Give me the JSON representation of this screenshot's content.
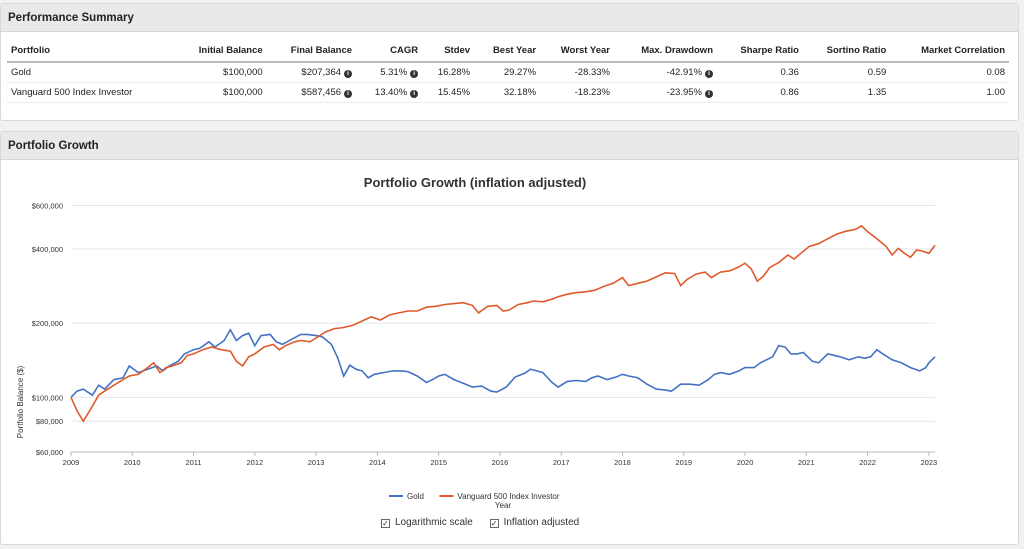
{
  "perf": {
    "title": "Performance Summary",
    "columns": [
      "Portfolio",
      "Initial Balance",
      "Final Balance",
      "CAGR",
      "Stdev",
      "Best Year",
      "Worst Year",
      "Max. Drawdown",
      "Sharpe Ratio",
      "Sortino Ratio",
      "Market Correlation"
    ],
    "rows": [
      [
        "Gold",
        "$100,000",
        "$207,364",
        "5.31%",
        "16.28%",
        "29.27%",
        "-28.33%",
        "-42.91%",
        "0.36",
        "0.59",
        "0.08"
      ],
      [
        "Vanguard 500 Index Investor",
        "$100,000",
        "$587,456",
        "13.40%",
        "15.45%",
        "32.18%",
        "-18.23%",
        "-23.95%",
        "0.86",
        "1.35",
        "1.00"
      ]
    ]
  },
  "growth": {
    "title": "Portfolio Growth",
    "options": {
      "log_label": "Logarithmic scale",
      "inflation_label": "Inflation adjusted"
    }
  },
  "colors": {
    "gold": "#4472c4",
    "vanguard": "#e05a2b"
  },
  "chart_data": {
    "type": "line",
    "title": "Portfolio Growth (inflation adjusted)",
    "xlabel": "Year",
    "ylabel": "Portfolio Balance ($)",
    "yscale": "log",
    "ylim": [
      60000,
      620000
    ],
    "xlim": [
      2009,
      2023.1
    ],
    "xticks": [
      "2009",
      "2010",
      "2011",
      "2012",
      "2013",
      "2014",
      "2015",
      "2016",
      "2017",
      "2018",
      "2019",
      "2020",
      "2021",
      "2022",
      "2023"
    ],
    "yticks": [
      {
        "v": 60000,
        "label": "$60,000"
      },
      {
        "v": 80000,
        "label": "$80,000"
      },
      {
        "v": 100000,
        "label": "$100,000"
      },
      {
        "v": 200000,
        "label": "$200,000"
      },
      {
        "v": 400000,
        "label": "$400,000"
      },
      {
        "v": 600000,
        "label": "$600,000"
      }
    ],
    "legend_position": "bottom",
    "series": [
      {
        "name": "Gold",
        "points": [
          [
            2009.0,
            100000
          ],
          [
            2009.1,
            106000
          ],
          [
            2009.2,
            108000
          ],
          [
            2009.35,
            102000
          ],
          [
            2009.45,
            112000
          ],
          [
            2009.55,
            108000
          ],
          [
            2009.7,
            118000
          ],
          [
            2009.85,
            120000
          ],
          [
            2009.95,
            134000
          ],
          [
            2010.1,
            126000
          ],
          [
            2010.25,
            130000
          ],
          [
            2010.4,
            134000
          ],
          [
            2010.5,
            128000
          ],
          [
            2010.6,
            134000
          ],
          [
            2010.75,
            140000
          ],
          [
            2010.85,
            150000
          ],
          [
            2011.0,
            156000
          ],
          [
            2011.1,
            158000
          ],
          [
            2011.25,
            168000
          ],
          [
            2011.35,
            160000
          ],
          [
            2011.5,
            170000
          ],
          [
            2011.6,
            188000
          ],
          [
            2011.7,
            170000
          ],
          [
            2011.8,
            178000
          ],
          [
            2011.9,
            182000
          ],
          [
            2012.0,
            162000
          ],
          [
            2012.1,
            178000
          ],
          [
            2012.25,
            180000
          ],
          [
            2012.35,
            168000
          ],
          [
            2012.45,
            164000
          ],
          [
            2012.6,
            172000
          ],
          [
            2012.75,
            180000
          ],
          [
            2012.85,
            180000
          ],
          [
            2013.0,
            178000
          ],
          [
            2013.1,
            176000
          ],
          [
            2013.25,
            164000
          ],
          [
            2013.35,
            145000
          ],
          [
            2013.45,
            122000
          ],
          [
            2013.55,
            135000
          ],
          [
            2013.65,
            130000
          ],
          [
            2013.75,
            128000
          ],
          [
            2013.85,
            120000
          ],
          [
            2013.95,
            124000
          ],
          [
            2014.1,
            126000
          ],
          [
            2014.25,
            128000
          ],
          [
            2014.4,
            128000
          ],
          [
            2014.5,
            127000
          ],
          [
            2014.65,
            122000
          ],
          [
            2014.8,
            115000
          ],
          [
            2014.9,
            118000
          ],
          [
            2015.0,
            122000
          ],
          [
            2015.1,
            124000
          ],
          [
            2015.25,
            118000
          ],
          [
            2015.4,
            114000
          ],
          [
            2015.55,
            110000
          ],
          [
            2015.7,
            111000
          ],
          [
            2015.85,
            106000
          ],
          [
            2015.95,
            105000
          ],
          [
            2016.1,
            110000
          ],
          [
            2016.25,
            121000
          ],
          [
            2016.4,
            125000
          ],
          [
            2016.5,
            130000
          ],
          [
            2016.6,
            128000
          ],
          [
            2016.7,
            126000
          ],
          [
            2016.85,
            115000
          ],
          [
            2016.95,
            110000
          ],
          [
            2017.1,
            116000
          ],
          [
            2017.25,
            117000
          ],
          [
            2017.4,
            116000
          ],
          [
            2017.5,
            120000
          ],
          [
            2017.6,
            122000
          ],
          [
            2017.75,
            118000
          ],
          [
            2017.9,
            121000
          ],
          [
            2018.0,
            124000
          ],
          [
            2018.1,
            122000
          ],
          [
            2018.25,
            120000
          ],
          [
            2018.4,
            113000
          ],
          [
            2018.55,
            108000
          ],
          [
            2018.7,
            107000
          ],
          [
            2018.8,
            106000
          ],
          [
            2018.95,
            113000
          ],
          [
            2019.1,
            113000
          ],
          [
            2019.25,
            112000
          ],
          [
            2019.4,
            118000
          ],
          [
            2019.5,
            124000
          ],
          [
            2019.6,
            126000
          ],
          [
            2019.75,
            124000
          ],
          [
            2019.9,
            128000
          ],
          [
            2020.0,
            132000
          ],
          [
            2020.15,
            132000
          ],
          [
            2020.25,
            138000
          ],
          [
            2020.35,
            142000
          ],
          [
            2020.45,
            146000
          ],
          [
            2020.55,
            162000
          ],
          [
            2020.65,
            160000
          ],
          [
            2020.75,
            150000
          ],
          [
            2020.85,
            150000
          ],
          [
            2020.95,
            152000
          ],
          [
            2021.1,
            140000
          ],
          [
            2021.2,
            138000
          ],
          [
            2021.35,
            150000
          ],
          [
            2021.45,
            148000
          ],
          [
            2021.55,
            146000
          ],
          [
            2021.7,
            142000
          ],
          [
            2021.85,
            146000
          ],
          [
            2021.95,
            144000
          ],
          [
            2022.05,
            146000
          ],
          [
            2022.15,
            156000
          ],
          [
            2022.25,
            150000
          ],
          [
            2022.4,
            142000
          ],
          [
            2022.55,
            138000
          ],
          [
            2022.7,
            132000
          ],
          [
            2022.85,
            128000
          ],
          [
            2022.95,
            132000
          ],
          [
            2023.0,
            138000
          ],
          [
            2023.1,
            146000
          ]
        ]
      },
      {
        "name": "Vanguard 500 Index Investor",
        "points": [
          [
            2009.0,
            100000
          ],
          [
            2009.1,
            88000
          ],
          [
            2009.2,
            80000
          ],
          [
            2009.35,
            92000
          ],
          [
            2009.45,
            102000
          ],
          [
            2009.55,
            106000
          ],
          [
            2009.7,
            112000
          ],
          [
            2009.85,
            118000
          ],
          [
            2009.95,
            122000
          ],
          [
            2010.1,
            124000
          ],
          [
            2010.25,
            132000
          ],
          [
            2010.35,
            138000
          ],
          [
            2010.45,
            126000
          ],
          [
            2010.55,
            132000
          ],
          [
            2010.65,
            134000
          ],
          [
            2010.8,
            138000
          ],
          [
            2010.9,
            148000
          ],
          [
            2011.0,
            150000
          ],
          [
            2011.15,
            156000
          ],
          [
            2011.3,
            160000
          ],
          [
            2011.45,
            156000
          ],
          [
            2011.6,
            154000
          ],
          [
            2011.7,
            140000
          ],
          [
            2011.8,
            134000
          ],
          [
            2011.9,
            146000
          ],
          [
            2012.0,
            150000
          ],
          [
            2012.15,
            160000
          ],
          [
            2012.3,
            164000
          ],
          [
            2012.4,
            156000
          ],
          [
            2012.5,
            162000
          ],
          [
            2012.65,
            168000
          ],
          [
            2012.75,
            170000
          ],
          [
            2012.9,
            168000
          ],
          [
            2013.0,
            174000
          ],
          [
            2013.15,
            184000
          ],
          [
            2013.3,
            190000
          ],
          [
            2013.45,
            192000
          ],
          [
            2013.6,
            196000
          ],
          [
            2013.75,
            204000
          ],
          [
            2013.9,
            212000
          ],
          [
            2014.05,
            206000
          ],
          [
            2014.2,
            216000
          ],
          [
            2014.35,
            220000
          ],
          [
            2014.5,
            224000
          ],
          [
            2014.65,
            224000
          ],
          [
            2014.8,
            232000
          ],
          [
            2014.95,
            234000
          ],
          [
            2015.1,
            238000
          ],
          [
            2015.25,
            240000
          ],
          [
            2015.4,
            242000
          ],
          [
            2015.55,
            236000
          ],
          [
            2015.65,
            220000
          ],
          [
            2015.8,
            234000
          ],
          [
            2015.95,
            236000
          ],
          [
            2016.05,
            224000
          ],
          [
            2016.15,
            226000
          ],
          [
            2016.3,
            238000
          ],
          [
            2016.45,
            242000
          ],
          [
            2016.55,
            246000
          ],
          [
            2016.7,
            244000
          ],
          [
            2016.85,
            250000
          ],
          [
            2016.95,
            256000
          ],
          [
            2017.1,
            262000
          ],
          [
            2017.25,
            266000
          ],
          [
            2017.4,
            268000
          ],
          [
            2017.55,
            272000
          ],
          [
            2017.7,
            282000
          ],
          [
            2017.85,
            290000
          ],
          [
            2018.0,
            306000
          ],
          [
            2018.1,
            284000
          ],
          [
            2018.25,
            290000
          ],
          [
            2018.4,
            296000
          ],
          [
            2018.55,
            308000
          ],
          [
            2018.7,
            320000
          ],
          [
            2018.85,
            318000
          ],
          [
            2018.95,
            284000
          ],
          [
            2019.05,
            300000
          ],
          [
            2019.2,
            316000
          ],
          [
            2019.35,
            322000
          ],
          [
            2019.45,
            306000
          ],
          [
            2019.6,
            322000
          ],
          [
            2019.75,
            326000
          ],
          [
            2019.9,
            338000
          ],
          [
            2020.0,
            350000
          ],
          [
            2020.1,
            332000
          ],
          [
            2020.2,
            296000
          ],
          [
            2020.3,
            310000
          ],
          [
            2020.4,
            336000
          ],
          [
            2020.55,
            352000
          ],
          [
            2020.7,
            378000
          ],
          [
            2020.8,
            364000
          ],
          [
            2020.9,
            382000
          ],
          [
            2021.05,
            410000
          ],
          [
            2021.2,
            420000
          ],
          [
            2021.35,
            440000
          ],
          [
            2021.5,
            460000
          ],
          [
            2021.65,
            472000
          ],
          [
            2021.8,
            480000
          ],
          [
            2021.9,
            496000
          ],
          [
            2022.0,
            470000
          ],
          [
            2022.1,
            450000
          ],
          [
            2022.2,
            430000
          ],
          [
            2022.3,
            410000
          ],
          [
            2022.4,
            378000
          ],
          [
            2022.5,
            402000
          ],
          [
            2022.6,
            384000
          ],
          [
            2022.7,
            370000
          ],
          [
            2022.8,
            396000
          ],
          [
            2022.9,
            392000
          ],
          [
            2023.0,
            384000
          ],
          [
            2023.1,
            414000
          ]
        ]
      }
    ]
  }
}
